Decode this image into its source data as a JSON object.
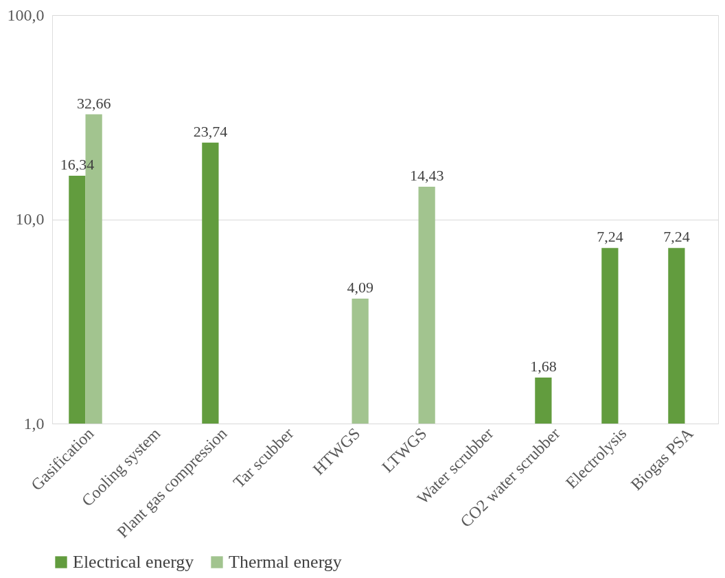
{
  "chart_data": {
    "type": "bar",
    "categories": [
      "Gasification",
      "Cooling system",
      "Plant gas compression",
      "Tar scubber",
      "HTWGS",
      "LTWGS",
      "Water scrubber",
      "CO2 water scrubber",
      "Electrolysis",
      "Biogas PSA"
    ],
    "series": [
      {
        "name": "Electrical energy",
        "color": "#629c3e",
        "values": [
          16.34,
          null,
          23.74,
          null,
          null,
          null,
          null,
          1.68,
          7.24,
          7.24
        ],
        "value_labels": [
          "16,34",
          null,
          "23,74",
          null,
          null,
          null,
          null,
          "1,68",
          "7,24",
          "7,24"
        ]
      },
      {
        "name": "Thermal energy",
        "color": "#a2c48f",
        "values": [
          32.66,
          null,
          null,
          null,
          4.09,
          14.43,
          null,
          null,
          null,
          null
        ],
        "value_labels": [
          "32,66",
          null,
          null,
          null,
          "4,09",
          "14,43",
          null,
          null,
          null,
          null
        ]
      }
    ],
    "log": true,
    "ylim": [
      1,
      100
    ],
    "yticks": [
      {
        "value": 1,
        "label": "1,0"
      },
      {
        "value": 10,
        "label": "10,0"
      },
      {
        "value": 100,
        "label": "100,0"
      }
    ],
    "grid": "y",
    "legend": "bottom"
  }
}
